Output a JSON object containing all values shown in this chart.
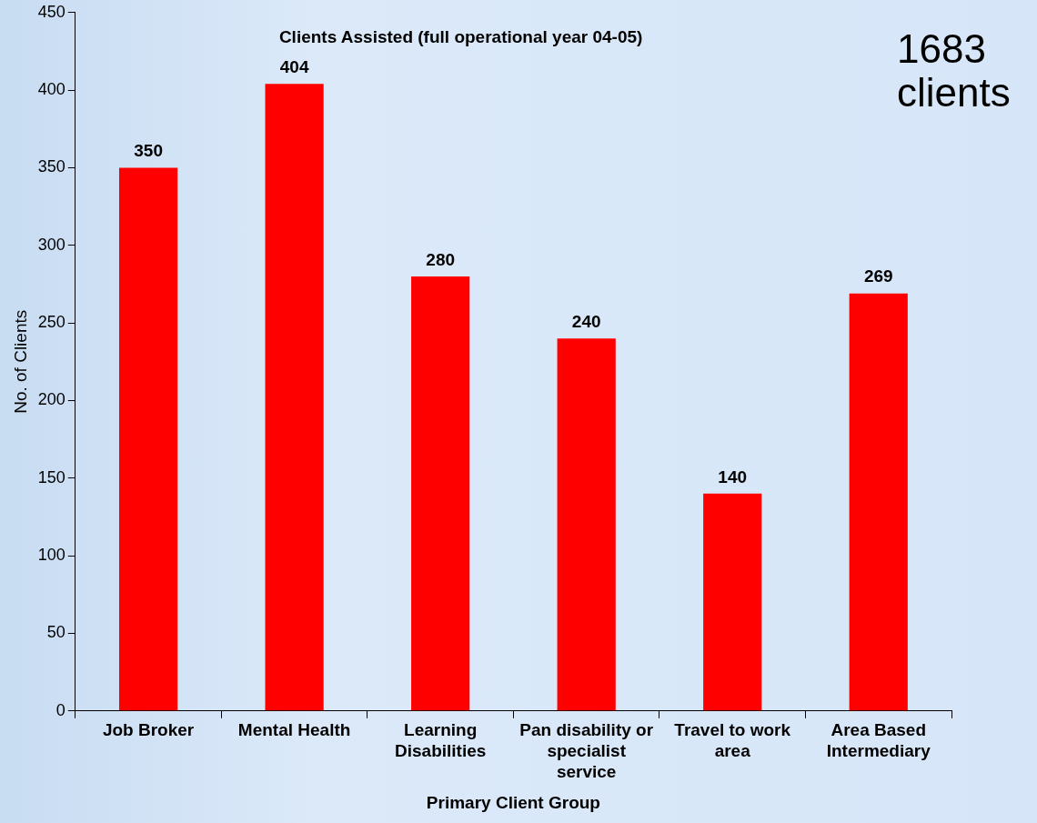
{
  "chart_data": {
    "type": "bar",
    "title": "Clients Assisted (full operational year 04-05)",
    "xlabel": "Primary Client Group",
    "ylabel": "No. of Clients",
    "categories": [
      "Job Broker",
      "Mental Health",
      "Learning Disabilities",
      "Pan disability or specialist service",
      "Travel to work area",
      "Area Based Intermediary"
    ],
    "values": [
      350,
      404,
      280,
      240,
      140,
      269
    ],
    "color": "#ff0000",
    "ylim": [
      0,
      450
    ],
    "yticks": [
      0,
      50,
      100,
      150,
      200,
      250,
      300,
      350,
      400,
      450
    ],
    "grid": false,
    "legend": false,
    "data_labels": true,
    "annotations": [
      "1683 clients"
    ]
  }
}
